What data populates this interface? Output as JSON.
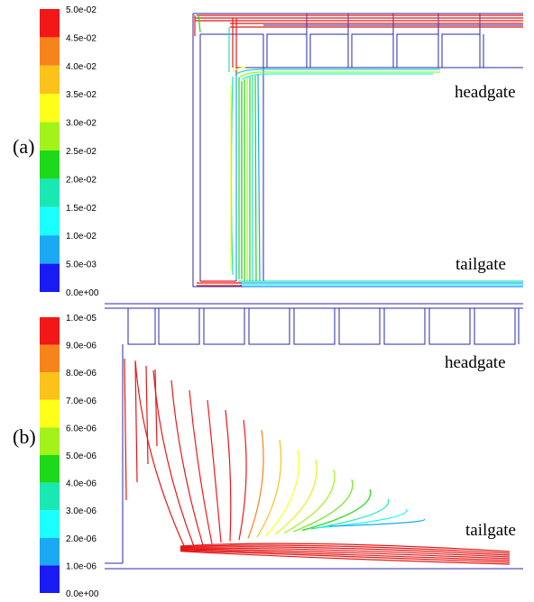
{
  "panel_a": {
    "label": "(a)",
    "colorbar": {
      "ticks": [
        "5.0e-02",
        "4.5e-02",
        "4.0e-02",
        "3.5e-02",
        "3.0e-02",
        "2.5e-02",
        "2.0e-02",
        "1.5e-02",
        "1.0e-02",
        "5.0e-03",
        "0.0e+00"
      ],
      "colors": [
        "#f21818",
        "#f6841a",
        "#fbc21a",
        "#ffff1a",
        "#a3f21a",
        "#1ed81a",
        "#1ae8b2",
        "#1affff",
        "#1aa9f2",
        "#1a1af2"
      ]
    },
    "labels": {
      "headgate": "headgate",
      "tailgate": "tailgate"
    }
  },
  "panel_b": {
    "label": "(b)",
    "colorbar": {
      "ticks": [
        "1.0e-05",
        "9.0e-06",
        "8.0e-06",
        "7.0e-06",
        "6.0e-06",
        "5.0e-06",
        "4.0e-06",
        "3.0e-06",
        "2.0e-06",
        "1.0e-06",
        "0.0e+00"
      ],
      "colors": [
        "#f21818",
        "#f6841a",
        "#fbc21a",
        "#ffff1a",
        "#a3f21a",
        "#1ed81a",
        "#1ae8b2",
        "#1affff",
        "#1aa9f2",
        "#1a1af2"
      ]
    },
    "labels": {
      "headgate": "headgate",
      "tailgate": "tailgate"
    }
  }
}
